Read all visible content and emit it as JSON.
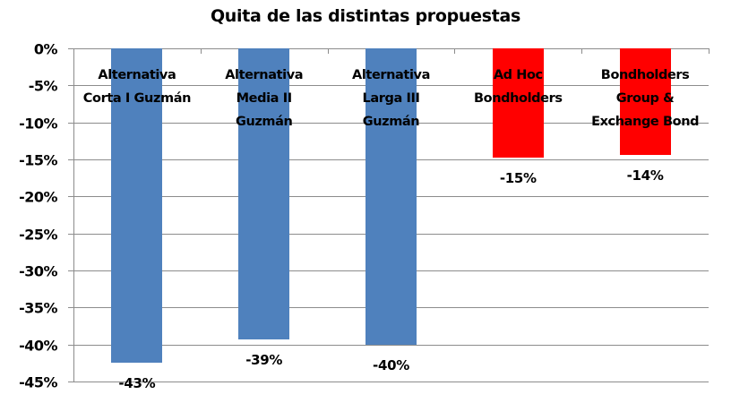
{
  "chart_data": {
    "type": "bar",
    "title": "Quita de las distintas propuestas",
    "xlabel": "",
    "ylabel": "",
    "ylim": [
      -45,
      0
    ],
    "yticks": [
      "0%",
      "-5%",
      "-10%",
      "-15%",
      "-20%",
      "-25%",
      "-30%",
      "-35%",
      "-40%",
      "-45%"
    ],
    "grid": true,
    "legend": null,
    "categories": [
      "Alternativa Corta I Guzmán",
      "Alternativa Media II Guzmán",
      "Alternativa Larga III Guzmán",
      "Ad Hoc Bondholders",
      "Bondholders Group & Exchange Bond"
    ],
    "category_lines": [
      [
        "Alternativa",
        "Corta I Guzmán"
      ],
      [
        "Alternativa",
        "Media II",
        "Guzmán"
      ],
      [
        "Alternativa",
        "Larga III",
        "Guzmán"
      ],
      [
        "Ad Hoc",
        "Bondholders"
      ],
      [
        "Bondholders",
        "Group &",
        "Exchange Bond"
      ]
    ],
    "values": [
      -42.5,
      -39.3,
      -40.0,
      -14.7,
      -14.4
    ],
    "data_labels": [
      "-43%",
      "-39%",
      "-40%",
      "-15%",
      "-14%"
    ],
    "colors": [
      "#4F81BD",
      "#4F81BD",
      "#4F81BD",
      "#FF0000",
      "#FF0000"
    ]
  }
}
